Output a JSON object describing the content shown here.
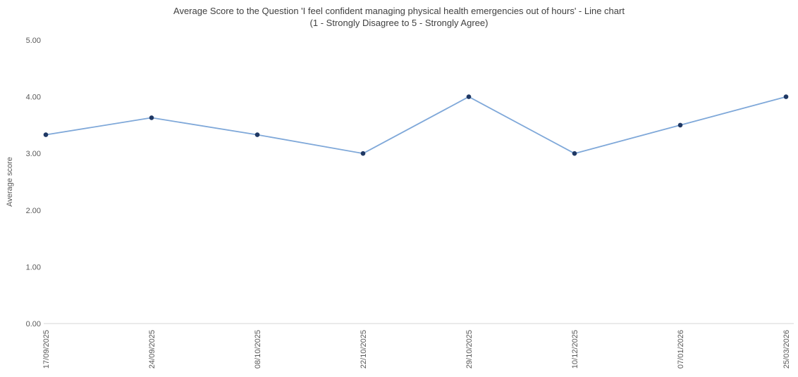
{
  "title": {
    "line1": "Average Score to the Question 'I feel confident managing physical health emergencies out of hours' - Line chart",
    "line2": "(1 - Strongly Disagree to 5 - Strongly Agree)"
  },
  "chart_data": {
    "type": "line",
    "title": "Average Score to the Question 'I feel confident managing physical health emergencies out of hours' - Line chart",
    "subtitle": "(1 - Strongly Disagree to 5 - Strongly Agree)",
    "xlabel": "",
    "ylabel": "Average score",
    "ylim": [
      0,
      5
    ],
    "yticks": [
      0,
      1,
      2,
      3,
      4,
      5
    ],
    "ytick_labels": [
      "0.00",
      "1.00",
      "2.00",
      "3.00",
      "4.00",
      "5.00"
    ],
    "categories": [
      "17/09/2025",
      "24/09/2025",
      "08/10/2025",
      "22/10/2025",
      "29/10/2025",
      "10/12/2025",
      "07/01/2026",
      "25/03/2026"
    ],
    "values": [
      3.33,
      3.63,
      3.33,
      3.0,
      4.0,
      3.0,
      3.5,
      4.0
    ],
    "grid": false,
    "legend": false,
    "line_color": "#7fa8d9",
    "marker_color": "#1f3864",
    "axis_line_color": "#d6d6d6",
    "tick_label_color": "#595959",
    "axis_title_color": "#595959"
  }
}
